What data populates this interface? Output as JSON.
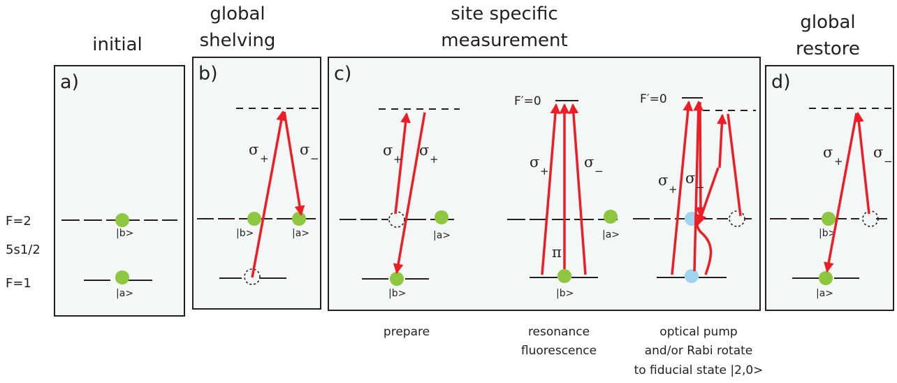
{
  "titles": {
    "initial": "initial",
    "shelving_1": "global",
    "shelving_2": "shelving",
    "measure_1": "site specific",
    "measure_2": "measurement",
    "restore_1": "global",
    "restore_2": "restore"
  },
  "panels": {
    "a": "a)",
    "b": "b)",
    "c": "c)",
    "d": "d)"
  },
  "levels": {
    "f2": "F=2",
    "state": "5s1/2",
    "f1": "F=1",
    "f_prime": "F′=0"
  },
  "kets": {
    "a": "|a>",
    "b": "|b>"
  },
  "symbols": {
    "sigma": "σ",
    "plus": "+",
    "minus": "−",
    "pi": "π"
  },
  "captions": {
    "prepare": "prepare",
    "resonance_1": "resonance",
    "resonance_2": "fluorescence",
    "pump_1": "optical pump",
    "pump_2": "and/or Rabi rotate",
    "pump_3": "to fiducial state |2,0>"
  },
  "colors": {
    "beam": "#ee1c24",
    "atom": "#8dc63f",
    "atom_pumped": "#9fd3ee",
    "panel_bg": "#f3f8f7"
  }
}
